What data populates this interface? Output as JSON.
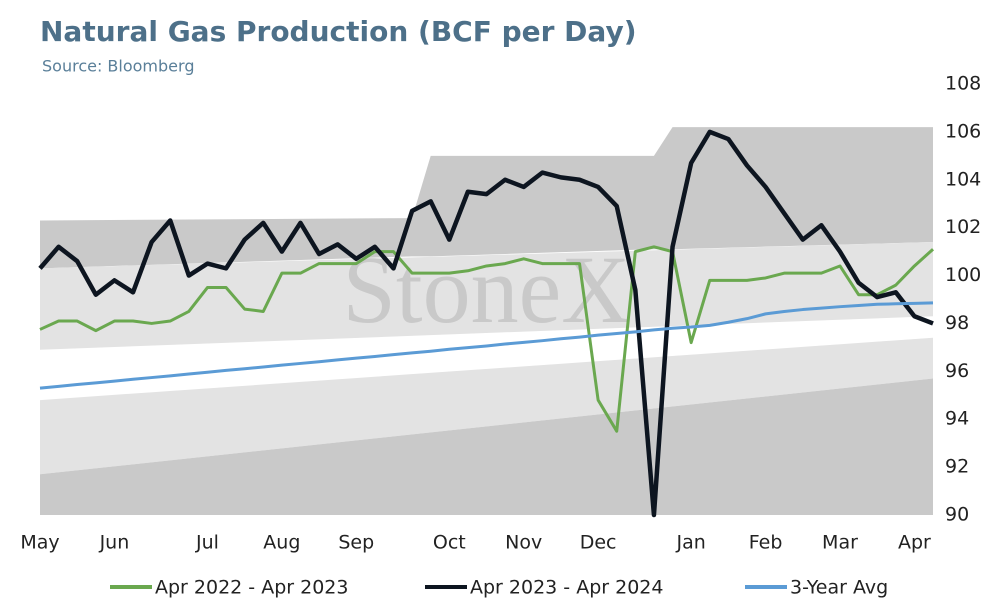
{
  "chart_data": {
    "type": "line",
    "title": "Natural Gas Production (BCF per Day)",
    "subtitle": "Source: Bloomberg",
    "watermark": "StoneX",
    "categories": [
      "May",
      null,
      null,
      null,
      "Jun",
      null,
      null,
      null,
      null,
      "Jul",
      null,
      null,
      null,
      "Aug",
      null,
      null,
      null,
      "Sep",
      null,
      null,
      null,
      null,
      "Oct",
      null,
      null,
      null,
      "Nov",
      null,
      null,
      null,
      "Dec",
      null,
      null,
      null,
      null,
      "Jan",
      null,
      null,
      null,
      "Feb",
      null,
      null,
      null,
      "Mar",
      null,
      null,
      null,
      "Apr",
      null
    ],
    "series": [
      {
        "name": "Apr 2022 - Apr 2023",
        "color": "#6aa84f",
        "values": [
          97.75,
          98.1,
          98.1,
          97.7,
          98.1,
          98.1,
          98.0,
          98.1,
          98.5,
          99.5,
          99.5,
          98.6,
          98.5,
          100.1,
          100.1,
          100.5,
          100.5,
          100.5,
          101.0,
          101.0,
          100.1,
          100.1,
          100.1,
          100.2,
          100.4,
          100.5,
          100.7,
          100.5,
          100.5,
          100.5,
          94.8,
          93.5,
          101.0,
          101.2,
          101.0,
          97.2,
          99.8,
          99.8,
          99.8,
          99.9,
          100.1,
          100.1,
          100.1,
          100.4,
          99.2,
          99.2,
          99.6,
          100.4,
          101.1
        ]
      },
      {
        "name": "Apr 2023 - Apr 2024",
        "color": "#0d1520",
        "values": [
          100.3,
          101.2,
          100.6,
          99.2,
          99.8,
          99.3,
          101.4,
          102.3,
          100.0,
          100.5,
          100.3,
          101.5,
          102.2,
          101.0,
          102.2,
          100.9,
          101.3,
          100.7,
          101.2,
          100.3,
          102.7,
          103.1,
          101.5,
          103.5,
          103.4,
          104.0,
          103.7,
          104.3,
          104.1,
          104.0,
          103.7,
          102.9,
          99.4,
          90.0,
          101.2,
          104.7,
          106.0,
          105.7,
          104.6,
          103.7,
          102.6,
          101.5,
          102.1,
          101.0,
          99.7,
          99.1,
          99.3,
          98.3,
          98.0
        ]
      },
      {
        "name": "3-Year Avg",
        "color": "#5b9bd5",
        "values": [
          95.3,
          95.37,
          95.45,
          95.52,
          95.59,
          95.67,
          95.74,
          95.81,
          95.89,
          95.96,
          96.04,
          96.11,
          96.18,
          96.26,
          96.33,
          96.4,
          96.48,
          96.55,
          96.62,
          96.7,
          96.77,
          96.84,
          96.92,
          96.99,
          97.06,
          97.14,
          97.21,
          97.28,
          97.36,
          97.43,
          97.51,
          97.58,
          97.65,
          97.73,
          97.8,
          97.85,
          97.92,
          98.05,
          98.2,
          98.4,
          98.5,
          98.58,
          98.64,
          98.7,
          98.75,
          98.8,
          98.82,
          98.84,
          98.86
        ]
      }
    ],
    "bands": [
      {
        "color": "#c9c9c9",
        "x": [
          0,
          20,
          21,
          33,
          34,
          48
        ],
        "upper": [
          102.3,
          102.4,
          105.0,
          105.0,
          106.2,
          106.2
        ],
        "lower": [
          100.3,
          100.8,
          100.8,
          101.1,
          101.1,
          101.4
        ]
      },
      {
        "color": "#e3e3e3",
        "x": [
          0,
          48
        ],
        "upper": [
          100.3,
          101.4
        ],
        "lower": [
          96.9,
          98.3
        ]
      },
      {
        "color": "#e3e3e3",
        "x": [
          0,
          48
        ],
        "upper": [
          94.8,
          97.4
        ],
        "lower": [
          91.7,
          95.7
        ]
      },
      {
        "color": "#c9c9c9",
        "x": [
          0,
          48
        ],
        "upper": [
          91.7,
          95.7
        ],
        "lower": [
          90,
          90
        ]
      }
    ],
    "ylim": [
      90,
      108
    ],
    "yticks": [
      90,
      92,
      94,
      96,
      98,
      100,
      102,
      104,
      106,
      108
    ]
  }
}
